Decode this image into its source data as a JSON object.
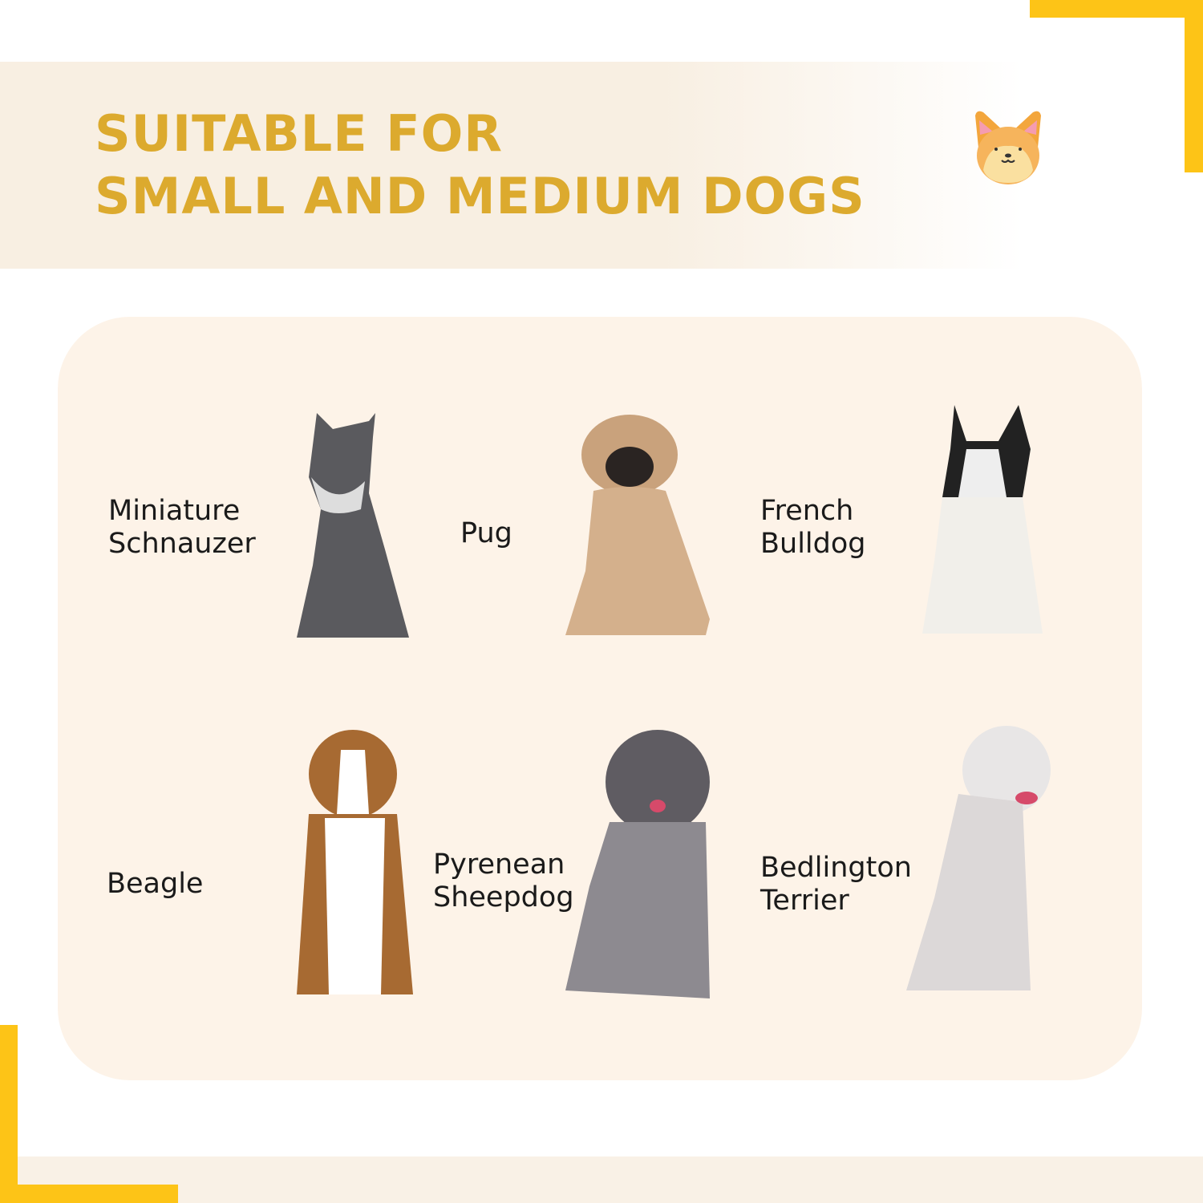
{
  "header": {
    "title_line1": "SUITABLE FOR",
    "title_line2": "SMALL AND MEDIUM DOGS",
    "icon": "corgi-face-icon"
  },
  "colors": {
    "accent": "#fdc417",
    "title": "#dcaa2e",
    "panel": "#fdf3e8"
  },
  "breeds": [
    {
      "line1": "Miniature",
      "line2": "Schnauzer"
    },
    {
      "line1": "Pug",
      "line2": ""
    },
    {
      "line1": "French",
      "line2": "Bulldog"
    },
    {
      "line1": "Beagle",
      "line2": ""
    },
    {
      "line1": "Pyrenean",
      "line2": "Sheepdog"
    },
    {
      "line1": "Bedlington",
      "line2": "Terrier"
    }
  ]
}
